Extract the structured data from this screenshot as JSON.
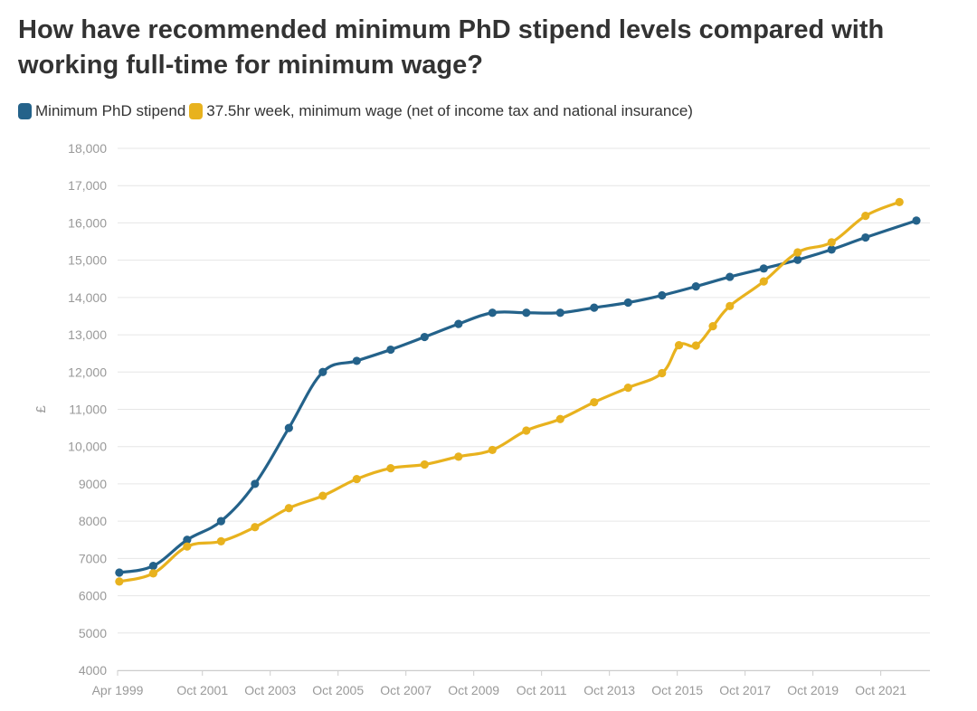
{
  "title": "How have recommended minimum PhD stipend levels compared with working full-time for minimum wage?",
  "colors": {
    "stipend": "#24628a",
    "wage": "#e8b21e",
    "grid": "#e6e6e6",
    "axis_text": "#999999"
  },
  "chart_data": {
    "type": "line",
    "title": "How have recommended minimum PhD stipend levels compared with working full-time for minimum wage?",
    "xlabel": "",
    "ylabel": "£",
    "ylim": [
      4000,
      18000
    ],
    "yticks": [
      {
        "value": 4000,
        "label": "4000"
      },
      {
        "value": 5000,
        "label": "5000"
      },
      {
        "value": 6000,
        "label": "6000"
      },
      {
        "value": 7000,
        "label": "7000"
      },
      {
        "value": 8000,
        "label": "8000"
      },
      {
        "value": 9000,
        "label": "9000"
      },
      {
        "value": 10000,
        "label": "10,000"
      },
      {
        "value": 11000,
        "label": "11,000"
      },
      {
        "value": 12000,
        "label": "12,000"
      },
      {
        "value": 13000,
        "label": "13,000"
      },
      {
        "value": 14000,
        "label": "14,000"
      },
      {
        "value": 15000,
        "label": "15,000"
      },
      {
        "value": 16000,
        "label": "16,000"
      },
      {
        "value": 17000,
        "label": "17,000"
      },
      {
        "value": 18000,
        "label": "18,000"
      }
    ],
    "xlim": [
      1999.25,
      2023.2
    ],
    "xticks": [
      {
        "value": 1999.25,
        "label": "Apr 1999"
      },
      {
        "value": 2001.75,
        "label": "Oct 2001"
      },
      {
        "value": 2003.75,
        "label": "Oct 2003"
      },
      {
        "value": 2005.75,
        "label": "Oct 2005"
      },
      {
        "value": 2007.75,
        "label": "Oct 2007"
      },
      {
        "value": 2009.75,
        "label": "Oct 2009"
      },
      {
        "value": 2011.75,
        "label": "Oct 2011"
      },
      {
        "value": 2013.75,
        "label": "Oct 2013"
      },
      {
        "value": 2015.75,
        "label": "Oct 2015"
      },
      {
        "value": 2017.75,
        "label": "Oct 2017"
      },
      {
        "value": 2019.75,
        "label": "Oct 2019"
      },
      {
        "value": 2021.75,
        "label": "Oct 2021"
      }
    ],
    "legend_position": "top-left",
    "series": [
      {
        "name": "Minimum PhD stipend",
        "color": "#24628a",
        "x": [
          1999.3,
          2000.3,
          2001.3,
          2002.3,
          2003.3,
          2004.3,
          2005.3,
          2006.3,
          2007.3,
          2008.3,
          2009.3,
          2010.3,
          2011.3,
          2012.3,
          2013.3,
          2014.3,
          2015.3,
          2016.3,
          2017.3,
          2018.3,
          2019.3,
          2020.3,
          2021.3,
          2022.8
        ],
        "y": [
          6620,
          6800,
          7500,
          8000,
          9000,
          10500,
          12000,
          12300,
          12600,
          12940,
          13290,
          13590,
          13590,
          13590,
          13726,
          13863,
          14057,
          14296,
          14553,
          14777,
          15009,
          15285,
          15609,
          16062
        ]
      },
      {
        "name": "37.5hr week, minimum wage (net of income tax and national insurance)",
        "color": "#e8b21e",
        "x": [
          1999.3,
          2000.3,
          2001.3,
          2002.3,
          2003.3,
          2004.3,
          2005.3,
          2006.3,
          2007.3,
          2008.3,
          2009.3,
          2010.3,
          2011.3,
          2012.3,
          2013.3,
          2014.3,
          2015.3,
          2015.8,
          2016.3,
          2016.8,
          2017.3,
          2018.3,
          2019.3,
          2020.3,
          2021.3,
          2022.3
        ],
        "y": [
          6380,
          6600,
          7320,
          7460,
          7840,
          8350,
          8680,
          9130,
          9420,
          9520,
          9730,
          9910,
          10430,
          10740,
          11190,
          11580,
          11970,
          12720,
          12710,
          13230,
          13770,
          14430,
          15210,
          15480,
          16190,
          16560
        ]
      }
    ]
  }
}
